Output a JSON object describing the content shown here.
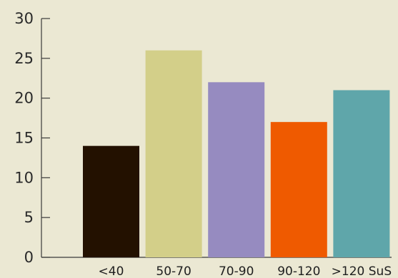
{
  "chart_data": {
    "type": "bar",
    "categories": [
      "<40",
      "50-70",
      "70-90",
      "90-120",
      ">120 SuS"
    ],
    "values": [
      14,
      26,
      22,
      17,
      21
    ],
    "colors": [
      "#231100",
      "#d3cf89",
      "#968bc0",
      "#ef5a00",
      "#5fa6aa"
    ],
    "title": "",
    "xlabel": "",
    "ylabel": "",
    "ylim": [
      0,
      30
    ],
    "yticks": [
      0,
      5,
      10,
      15,
      20,
      25,
      30
    ],
    "grid": false,
    "legend": "none"
  }
}
